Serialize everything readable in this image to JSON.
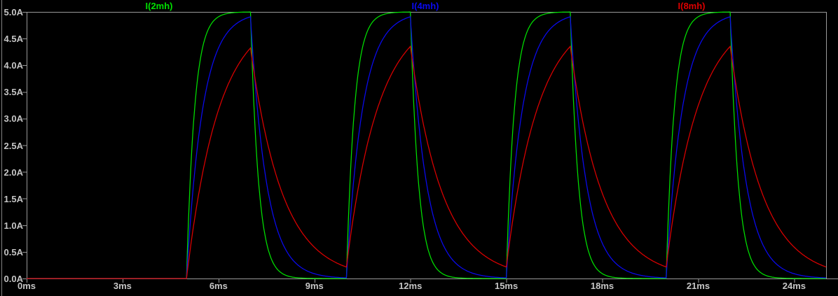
{
  "window": {
    "background_color": "#000000",
    "axis_line_color": "#9a9a9a",
    "tick_label_color": "#c6c6c6"
  },
  "chart_data": {
    "type": "line",
    "title": "",
    "grid": false,
    "legend_position": "top-inline",
    "x_axis": {
      "unit": "ms",
      "min": 0,
      "max": 25,
      "tick_step": 3,
      "tick_values": [
        0,
        3,
        6,
        9,
        12,
        15,
        18,
        21,
        24
      ],
      "tick_labels": [
        "0ms",
        "3ms",
        "6ms",
        "9ms",
        "12ms",
        "15ms",
        "18ms",
        "21ms",
        "24ms"
      ]
    },
    "y_axis": {
      "unit": "A",
      "min": 0,
      "max": 5,
      "tick_step": 0.5,
      "tick_values": [
        0,
        0.5,
        1,
        1.5,
        2,
        2.5,
        3,
        3.5,
        4,
        4.5,
        5
      ],
      "tick_labels": [
        "0.0A",
        "0.5A",
        "1.0A",
        "1.5A",
        "2.0A",
        "2.5A",
        "3.0A",
        "3.5A",
        "4.0A",
        "4.5A",
        "5.0A"
      ]
    },
    "pulse_drive": {
      "description": "RL charge/discharge: current 0 until first pulse; exponential rise toward steady current while on, exponential decay while off",
      "steady_state_current_A": 5,
      "first_on_ms": 5,
      "on_duration_ms": 2,
      "period_ms": 5,
      "pulse_starts_ms": [
        5,
        10,
        15,
        20
      ],
      "pulse_peak_times_ms": [
        7,
        12,
        17,
        22
      ]
    },
    "series": [
      {
        "name": "I(2mh)",
        "inductance_mH": 2,
        "tau_ms": 0.25,
        "color": "#00e000",
        "peaks_A": [
          5.0,
          5.0,
          5.0,
          5.0
        ],
        "residual_before_next_pulse_A": 0.0
      },
      {
        "name": "I(4mh)",
        "inductance_mH": 4,
        "tau_ms": 0.5,
        "color": "#0a0af0",
        "peaks_A": [
          4.91,
          4.91,
          4.91,
          4.91
        ],
        "residual_before_next_pulse_A": 0.01
      },
      {
        "name": "I(8mh)",
        "inductance_mH": 8,
        "tau_ms": 1.0,
        "color": "#dc0000",
        "peaks_A": [
          4.32,
          4.35,
          4.36,
          4.36
        ],
        "residual_before_next_pulse_A": 0.22
      }
    ]
  }
}
